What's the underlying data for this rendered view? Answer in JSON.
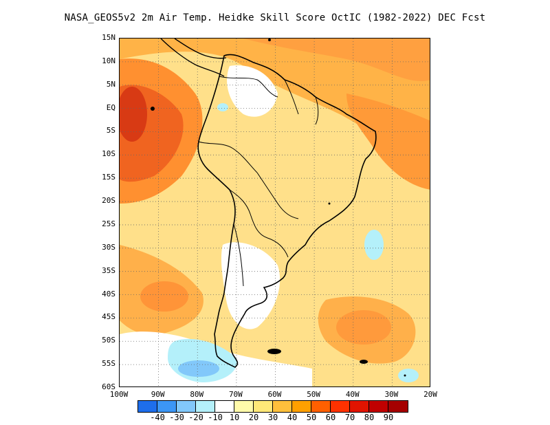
{
  "title": "NASA_GEOS5v2  2m Air Temp. Heidke Skill Score OctIC (1982-2022) DEC Fcst",
  "map": {
    "lat_range": [
      -60,
      15
    ],
    "lon_range": [
      -100,
      -20
    ],
    "lat_labels": [
      "15N",
      "10N",
      "5N",
      "EQ",
      "5S",
      "10S",
      "15S",
      "20S",
      "25S",
      "30S",
      "35S",
      "40S",
      "45S",
      "50S",
      "55S",
      "60S"
    ],
    "lon_labels": [
      "100W",
      "90W",
      "80W",
      "70W",
      "60W",
      "50W",
      "40W",
      "30W",
      "20W"
    ],
    "gridlines": "dotted"
  },
  "colorbar": {
    "labels": [
      "-40",
      "-30",
      "-20",
      "-10",
      "10",
      "20",
      "30",
      "40",
      "50",
      "60",
      "70",
      "80",
      "90"
    ],
    "colors": [
      "#1e6eeb",
      "#3c96f5",
      "#82c8fa",
      "#b4f0fa",
      "#ffffff",
      "#fffaaa",
      "#ffe878",
      "#ffc03c",
      "#ffa000",
      "#ff6000",
      "#ff3200",
      "#e11400",
      "#c00000",
      "#a50000"
    ]
  }
}
